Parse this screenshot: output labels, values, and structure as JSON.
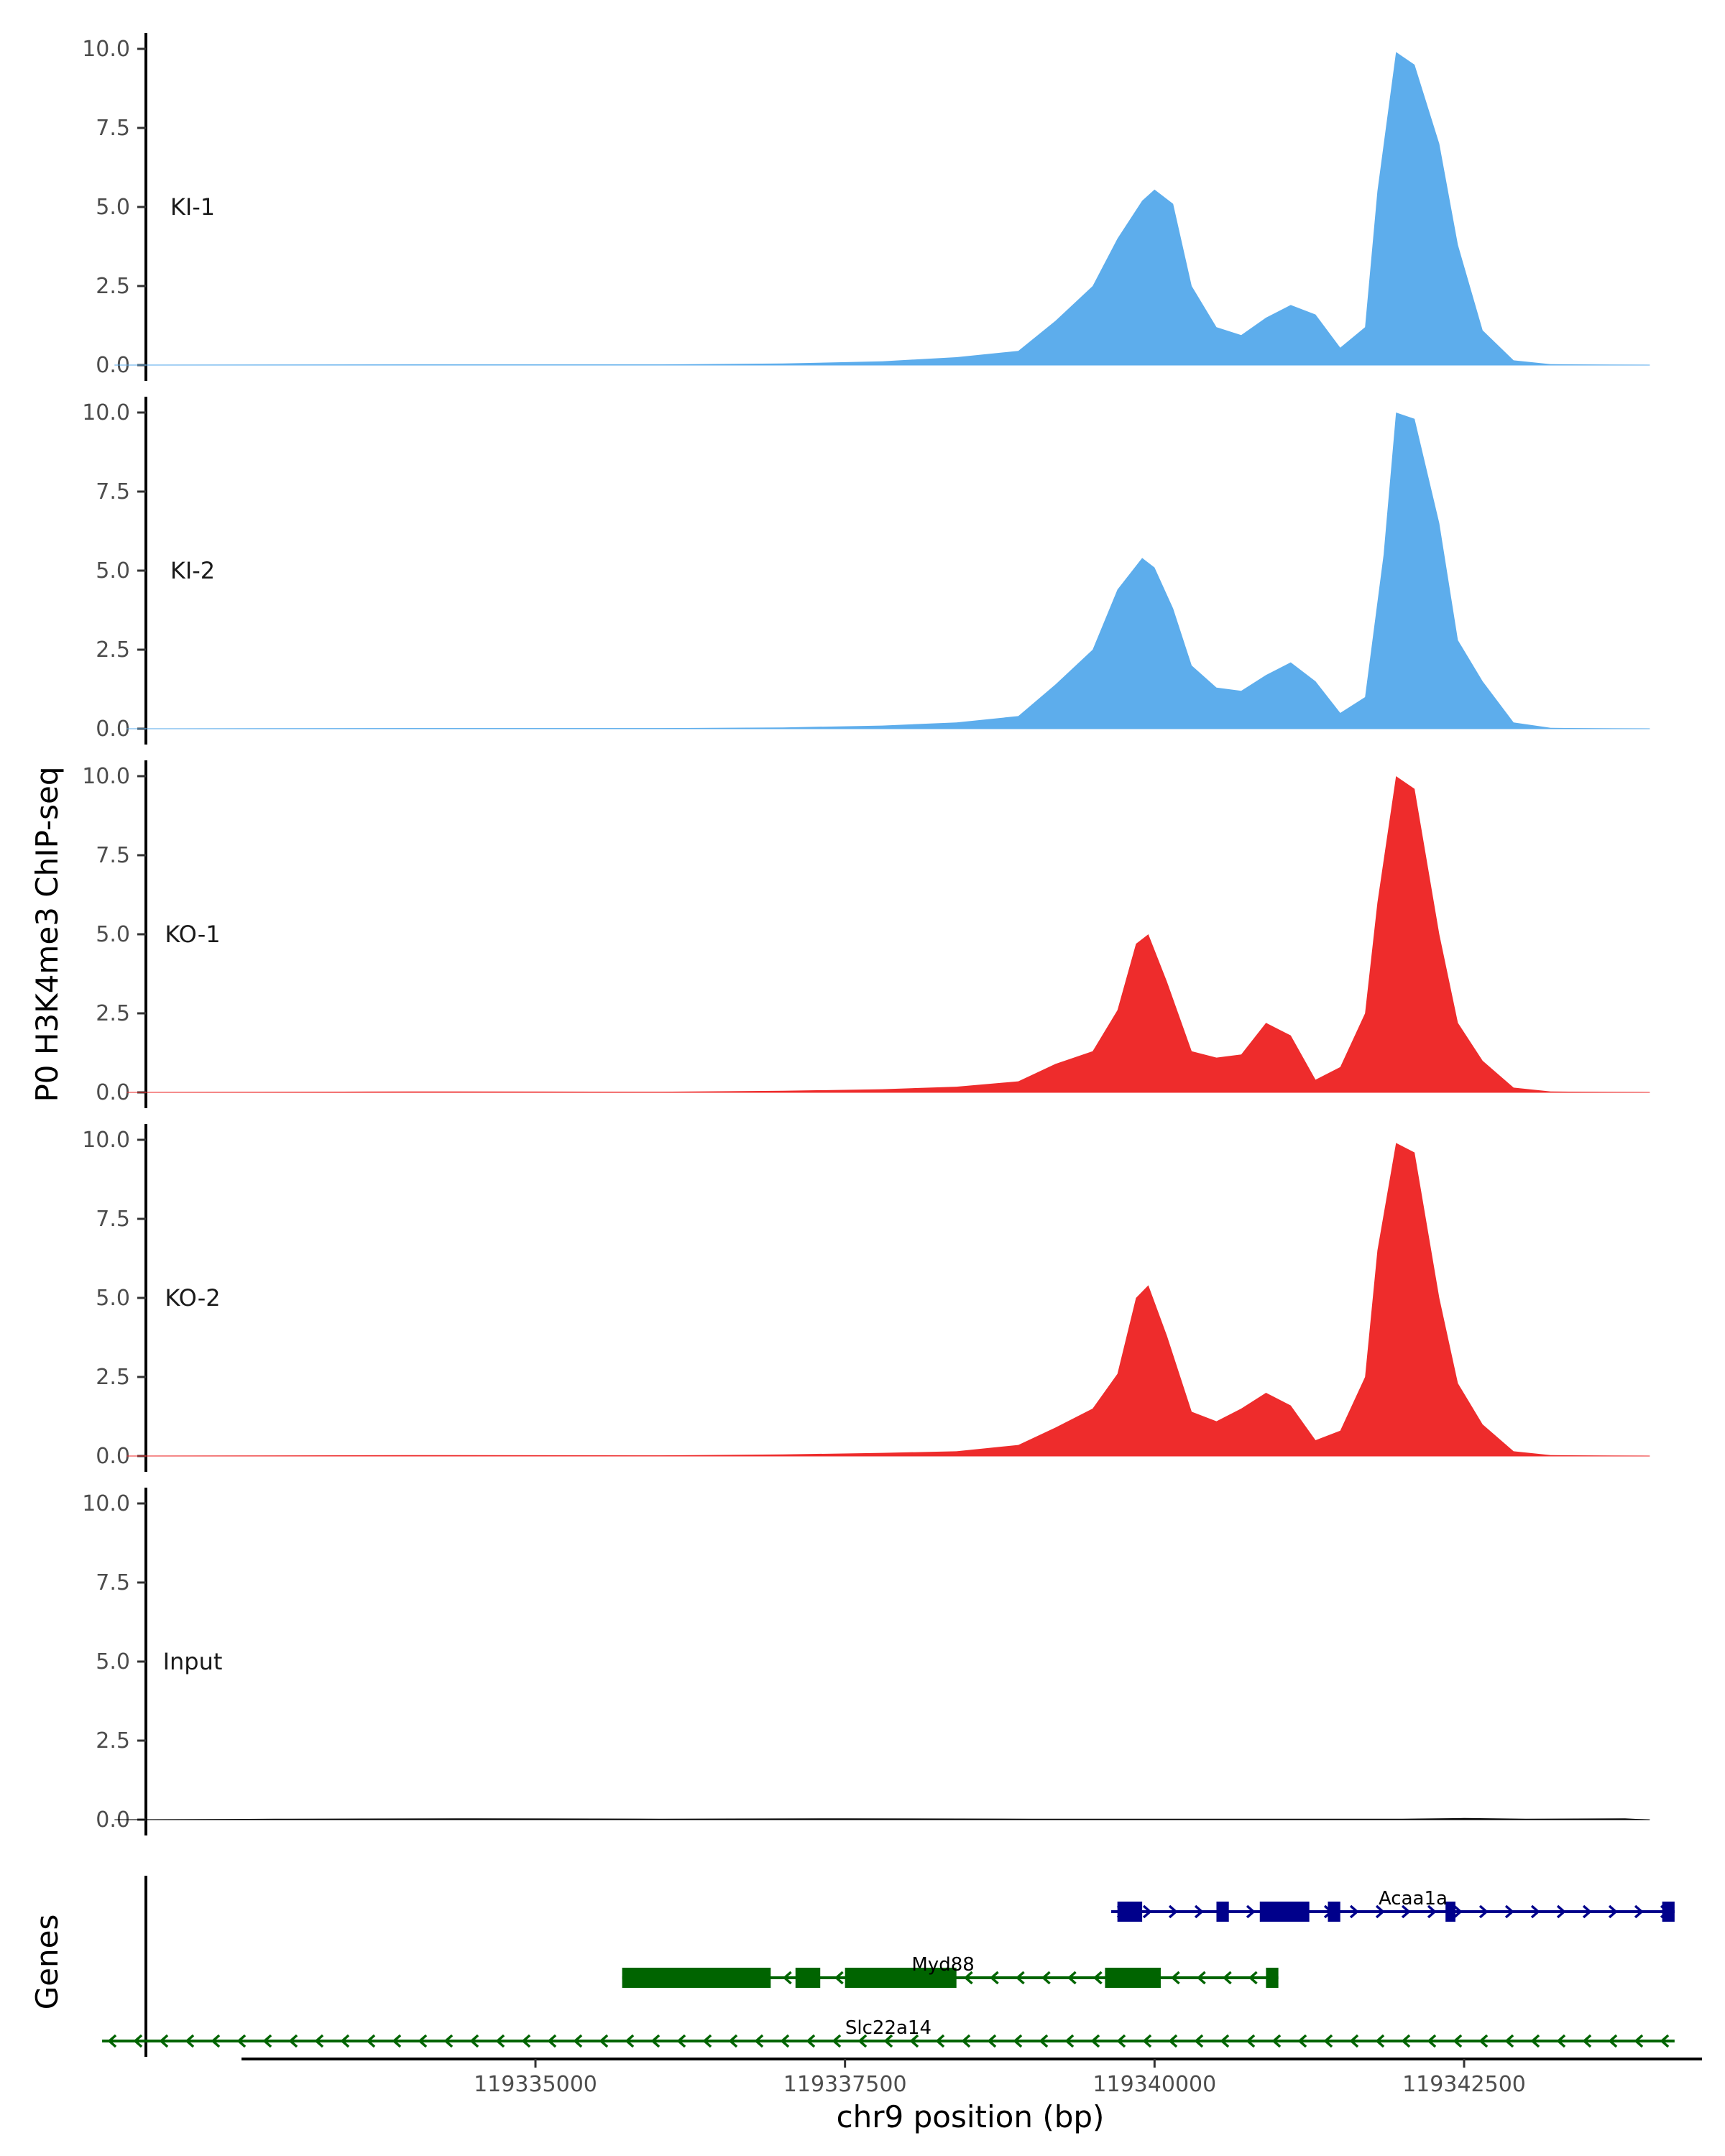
{
  "chart_data": {
    "type": "area",
    "ylabel": "P0 H3K4me3 ChIP-seq",
    "xlabel": "chr9 position (bp)",
    "genes_label": "Genes",
    "xlim": [
      119331000,
      119344000
    ],
    "x_ticks": [
      119335000,
      119337500,
      119340000,
      119342500
    ],
    "x_tick_labels": [
      "119335000",
      "119337500",
      "119340000",
      "119342500"
    ],
    "ylim": [
      0,
      10
    ],
    "y_ticks": [
      0,
      2.5,
      5,
      7.5,
      10
    ],
    "y_tick_labels": [
      "0.0",
      "2.5",
      "5.0",
      "7.5",
      "10.0"
    ],
    "colors": {
      "KI": "#5DADEC",
      "KO": "#EE2C2C",
      "Input": "#000000",
      "Acaa1a": "#00008B",
      "Myd88": "#006400",
      "Slc22a14": "#006400"
    },
    "series": [
      {
        "name": "KI-1",
        "color": "#5DADEC",
        "x": [
          119331600,
          119334000,
          119336000,
          119337000,
          119337800,
          119338400,
          119338900,
          119339200,
          119339500,
          119339700,
          119339900,
          119340000,
          119340150,
          119340300,
          119340500,
          119340700,
          119340900,
          119341100,
          119341300,
          119341500,
          119341700,
          119341800,
          119341950,
          119342100,
          119342300,
          119342450,
          119342650,
          119342900,
          119343200,
          119343700,
          119344000
        ],
        "y": [
          0,
          0.02,
          0.02,
          0.05,
          0.12,
          0.25,
          0.45,
          1.4,
          2.5,
          4.0,
          5.2,
          5.55,
          5.1,
          2.5,
          1.2,
          0.95,
          1.5,
          1.9,
          1.6,
          0.55,
          1.2,
          5.5,
          9.9,
          9.5,
          7.0,
          3.8,
          1.1,
          0.15,
          0.03,
          0.01,
          0
        ]
      },
      {
        "name": "KI-2",
        "color": "#5DADEC",
        "x": [
          119331700,
          119334000,
          119336000,
          119337000,
          119337800,
          119338400,
          119338900,
          119339200,
          119339500,
          119339700,
          119339900,
          119340000,
          119340150,
          119340300,
          119340500,
          119340700,
          119340900,
          119341100,
          119341300,
          119341500,
          119341700,
          119341850,
          119341950,
          119342100,
          119342300,
          119342450,
          119342650,
          119342900,
          119343200,
          119343700,
          119344000
        ],
        "y": [
          0,
          0.02,
          0.02,
          0.04,
          0.1,
          0.2,
          0.4,
          1.4,
          2.5,
          4.4,
          5.4,
          5.1,
          3.8,
          2.0,
          1.3,
          1.2,
          1.7,
          2.1,
          1.5,
          0.5,
          1.0,
          5.5,
          10.0,
          9.8,
          6.5,
          2.8,
          1.5,
          0.2,
          0.03,
          0.01,
          0
        ]
      },
      {
        "name": "KO-1",
        "color": "#EE2C2C",
        "x": [
          119331700,
          119334000,
          119336000,
          119337000,
          119337800,
          119338400,
          119338900,
          119339200,
          119339500,
          119339700,
          119339850,
          119339950,
          119340100,
          119340300,
          119340500,
          119340700,
          119340900,
          119341100,
          119341300,
          119341500,
          119341700,
          119341800,
          119341950,
          119342100,
          119342300,
          119342450,
          119342650,
          119342900,
          119343200,
          119343700,
          119344000
        ],
        "y": [
          0,
          0.03,
          0.02,
          0.05,
          0.1,
          0.18,
          0.35,
          0.9,
          1.3,
          2.6,
          4.7,
          5.0,
          3.5,
          1.3,
          1.1,
          1.2,
          2.2,
          1.8,
          0.4,
          0.8,
          2.5,
          6.0,
          10.0,
          9.6,
          5.0,
          2.2,
          1.0,
          0.15,
          0.03,
          0.01,
          0
        ]
      },
      {
        "name": "KO-2",
        "color": "#EE2C2C",
        "x": [
          119331700,
          119334000,
          119336000,
          119337000,
          119337800,
          119338400,
          119338900,
          119339200,
          119339500,
          119339700,
          119339850,
          119339950,
          119340100,
          119340300,
          119340500,
          119340700,
          119340900,
          119341100,
          119341300,
          119341500,
          119341700,
          119341800,
          119341950,
          119342100,
          119342300,
          119342450,
          119342650,
          119342900,
          119343200,
          119343700,
          119344000
        ],
        "y": [
          0,
          0.03,
          0.02,
          0.05,
          0.1,
          0.15,
          0.35,
          0.9,
          1.5,
          2.6,
          5.0,
          5.4,
          3.8,
          1.4,
          1.1,
          1.5,
          2.0,
          1.6,
          0.5,
          0.8,
          2.5,
          6.5,
          9.9,
          9.6,
          5.0,
          2.3,
          1.0,
          0.15,
          0.03,
          0.01,
          0
        ]
      },
      {
        "name": "Input",
        "color": "#000000",
        "x": [
          119331600,
          119333000,
          119334500,
          119336000,
          119337500,
          119339000,
          119340500,
          119342000,
          119342500,
          119343000,
          119343800,
          119344000
        ],
        "y": [
          0,
          0.03,
          0.04,
          0.03,
          0.04,
          0.03,
          0.03,
          0.03,
          0.05,
          0.03,
          0.04,
          0
        ]
      }
    ],
    "genes": [
      {
        "name": "Acaa1a",
        "strand": "+",
        "color": "#00008B",
        "row": 0,
        "start": 119339650,
        "end": 119344200,
        "exons": [
          [
            119339700,
            119339900
          ],
          [
            119340500,
            119340600
          ],
          [
            119340850,
            119341250
          ],
          [
            119341400,
            119341500
          ],
          [
            119342350,
            119342430
          ],
          [
            119344100,
            119344200
          ]
        ]
      },
      {
        "name": "Myd88",
        "strand": "-",
        "color": "#006400",
        "row": 1,
        "start": 119335700,
        "end": 119341000,
        "exons": [
          [
            119335700,
            119336900
          ],
          [
            119337100,
            119337300
          ],
          [
            119337500,
            119338400
          ],
          [
            119339600,
            119340050
          ],
          [
            119340900,
            119341000
          ]
        ]
      },
      {
        "name": "Slc22a14",
        "strand": "-",
        "color": "#006400",
        "row": 2,
        "start": 119331500,
        "end": 119344200,
        "exons": []
      }
    ]
  }
}
